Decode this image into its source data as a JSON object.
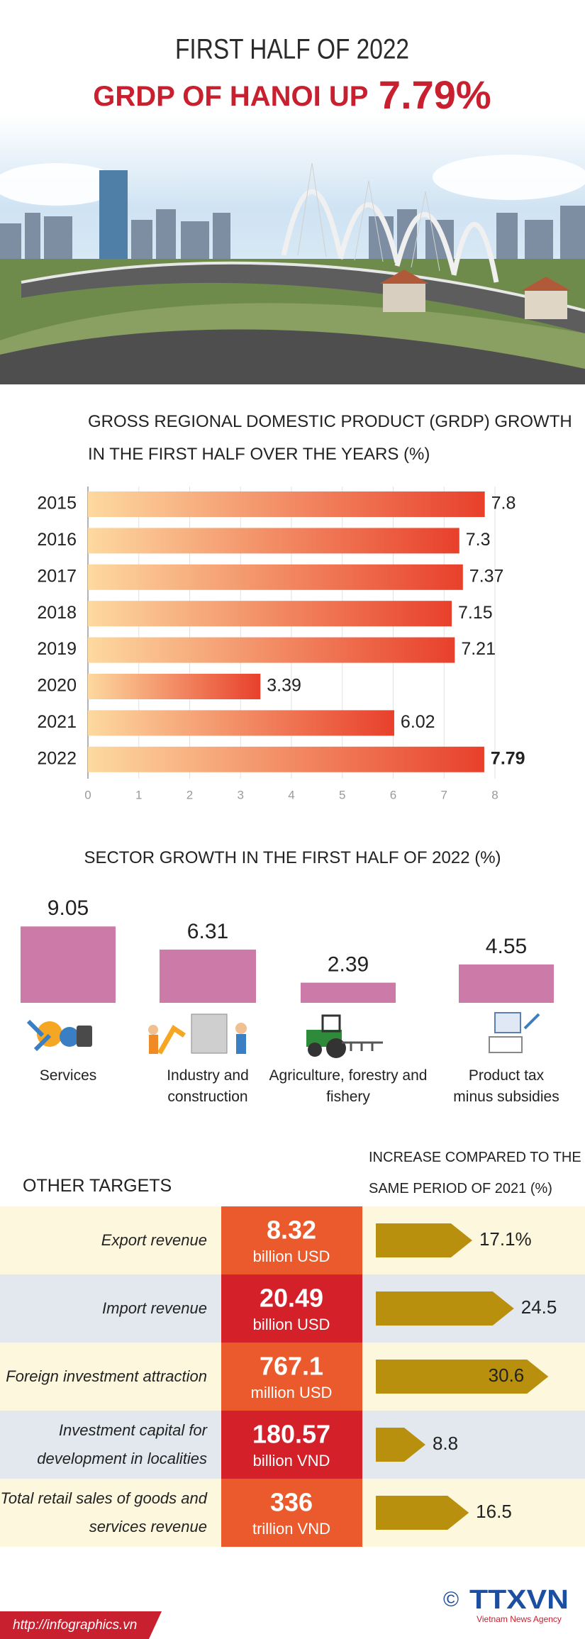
{
  "header": {
    "title": "FIRST HALF OF 2022",
    "headline": "GRDP OF HANOI UP",
    "headline_value": "7.79%"
  },
  "chart_data": [
    {
      "type": "bar",
      "orientation": "horizontal",
      "title": "GROSS REGIONAL DOMESTIC PRODUCT (GRDP) GROWTH IN THE FIRST HALF OVER THE YEARS (%)",
      "categories": [
        "2015",
        "2016",
        "2017",
        "2018",
        "2019",
        "2020",
        "2021",
        "2022"
      ],
      "values": [
        7.8,
        7.3,
        7.37,
        7.15,
        7.21,
        3.39,
        6.02,
        7.79
      ],
      "color": "#e8402b",
      "xlim": [
        0,
        8
      ],
      "xticks": [
        0,
        1,
        2,
        3,
        4,
        5,
        6,
        7,
        8
      ],
      "grid": true
    },
    {
      "type": "column",
      "title": "SECTOR GROWTH IN THE FIRST HALF OF 2022 (%)",
      "categories": [
        "Services",
        "Industry and construction",
        "Agriculture, forestry and fishery",
        "Product tax minus subsidies"
      ],
      "values": [
        9.05,
        6.31,
        2.39,
        4.55
      ],
      "color": "#cc7aa8"
    }
  ],
  "other_targets": {
    "title": "OTHER TARGETS",
    "increase_header": "INCREASE COMPARED TO THE SAME PERIOD OF 2021 (%)",
    "arrow_color": "#b8900e",
    "rows": [
      {
        "label": "Export revenue",
        "value": 8.32,
        "unit": "billion USD",
        "increase": 17.1,
        "increase_label": "17.1%"
      },
      {
        "label": "Import revenue",
        "value": 20.49,
        "unit": "billion USD",
        "increase": 24.5
      },
      {
        "label": "Foreign investment attraction",
        "value": 767.1,
        "unit": "million USD",
        "increase": 30.6
      },
      {
        "label": "Investment capital for development in localities",
        "value": 180.57,
        "unit": "billion VND",
        "increase": 8.8
      },
      {
        "label": "Total retail sales of goods and services revenue",
        "value": 336,
        "unit": "trillion VND",
        "increase": 16.5
      }
    ]
  },
  "footer": {
    "url": "http://infographics.vn",
    "copyright": "©",
    "logo": "TTXVN",
    "agency": "Vietnam News Agency"
  }
}
